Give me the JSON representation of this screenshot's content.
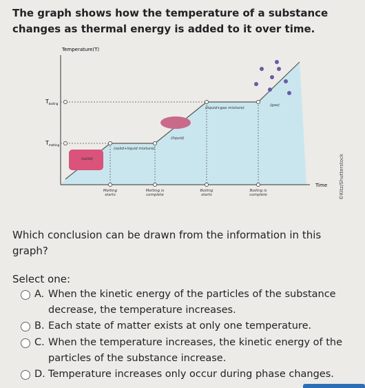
{
  "question": {
    "intro": "The graph shows how the temperature of a substance changes as thermal energy is added to it over time.",
    "prompt": "Which conclusion can be drawn from the information in this graph?",
    "instruction": "Select one:"
  },
  "graph": {
    "y_axis_label": "Temperature(T)",
    "x_axis_label": "Time",
    "boiling_symbol": "T",
    "boiling_subscript": "boiling",
    "melting_symbol": "T",
    "melting_subscript": "melting",
    "regions": [
      "(solid)",
      "(solid+liquid mixture)",
      "(liquid)",
      "(liquid+gas mixture)",
      "(gas)"
    ],
    "events": [
      [
        "Melting",
        "starts"
      ],
      [
        "Melting is",
        "complete"
      ],
      [
        "Boiling",
        "starts"
      ],
      [
        "Boiling is",
        "complete"
      ]
    ],
    "credit": "©Kitz/Shutterstock"
  },
  "options": [
    {
      "letter": "A.",
      "text": "When the kinetic energy of the particles of the substance decrease, the temperature increases."
    },
    {
      "letter": "B.",
      "text": "Each state of matter exists at only one temperature."
    },
    {
      "letter": "C.",
      "text": "When the temperature increases, the kinetic energy of the particles of the substance increase."
    },
    {
      "letter": "D.",
      "text": "Temperature increases only occur during phase changes."
    }
  ]
}
